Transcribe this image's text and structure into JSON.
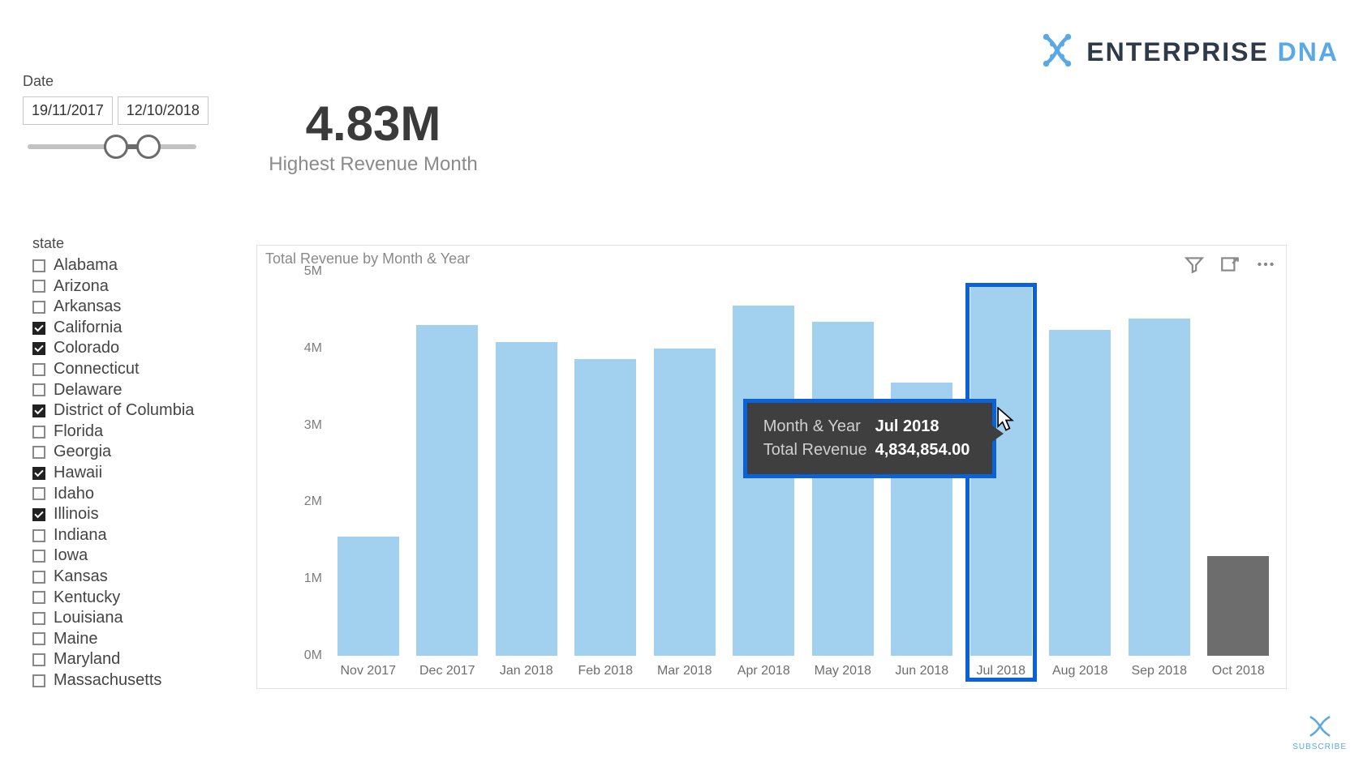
{
  "brand": {
    "name_a": "ENTERPRISE",
    "name_b": "DNA",
    "color_a": "#2e3a47",
    "color_b": "#5aa9e6",
    "icon_color": "#5aa9e6"
  },
  "date_slicer": {
    "label": "Date",
    "from": "19/11/2017",
    "to": "12/10/2018"
  },
  "kpi": {
    "value": "4.83M",
    "label": "Highest Revenue Month"
  },
  "state_slicer": {
    "title": "state",
    "items": [
      {
        "label": "Alabama",
        "checked": false
      },
      {
        "label": "Arizona",
        "checked": false
      },
      {
        "label": "Arkansas",
        "checked": false
      },
      {
        "label": "California",
        "checked": true
      },
      {
        "label": "Colorado",
        "checked": true
      },
      {
        "label": "Connecticut",
        "checked": false
      },
      {
        "label": "Delaware",
        "checked": false
      },
      {
        "label": "District of Columbia",
        "checked": true
      },
      {
        "label": "Florida",
        "checked": false
      },
      {
        "label": "Georgia",
        "checked": false
      },
      {
        "label": "Hawaii",
        "checked": true
      },
      {
        "label": "Idaho",
        "checked": false
      },
      {
        "label": "Illinois",
        "checked": true
      },
      {
        "label": "Indiana",
        "checked": false
      },
      {
        "label": "Iowa",
        "checked": false
      },
      {
        "label": "Kansas",
        "checked": false
      },
      {
        "label": "Kentucky",
        "checked": false
      },
      {
        "label": "Louisiana",
        "checked": false
      },
      {
        "label": "Maine",
        "checked": false
      },
      {
        "label": "Maryland",
        "checked": false
      },
      {
        "label": "Massachusetts",
        "checked": false
      }
    ]
  },
  "chart": {
    "title": "Total Revenue by Month & Year",
    "type": "bar",
    "background_color": "#ffffff",
    "bar_color": "#a1d1ef",
    "alt_bar_color": "#6d6d6d",
    "highlight_border_color": "#0b61d6",
    "label_color": "#6d6d6d",
    "axis_color": "#7d7d7d",
    "y": {
      "min": 0,
      "max": 5000000,
      "ticks": [
        {
          "value": 0,
          "label": "0M"
        },
        {
          "value": 1000000,
          "label": "1M"
        },
        {
          "value": 2000000,
          "label": "2M"
        },
        {
          "value": 3000000,
          "label": "3M"
        },
        {
          "value": 4000000,
          "label": "4M"
        },
        {
          "value": 5000000,
          "label": "5M"
        }
      ]
    },
    "bar_width_ratio": 0.78,
    "categories": [
      "Nov 2017",
      "Dec 2017",
      "Jan 2018",
      "Feb 2018",
      "Mar 2018",
      "Apr 2018",
      "May 2018",
      "Jun 2018",
      "Jul 2018",
      "Aug 2018",
      "Sep 2018",
      "Oct 2018"
    ],
    "values": [
      1550000,
      4300000,
      4080000,
      3860000,
      4000000,
      4560000,
      4350000,
      3550000,
      4830000,
      4240000,
      4390000,
      1300000
    ],
    "alt_index": 11,
    "highlighted_index": 8
  },
  "tooltip": {
    "rows": [
      {
        "k": "Month & Year",
        "v": "Jul 2018"
      },
      {
        "k": "Total Revenue",
        "v": "4,834,854.00"
      }
    ]
  },
  "subscribe": {
    "label": "SUBSCRIBE",
    "color": "#5aa9e6"
  }
}
